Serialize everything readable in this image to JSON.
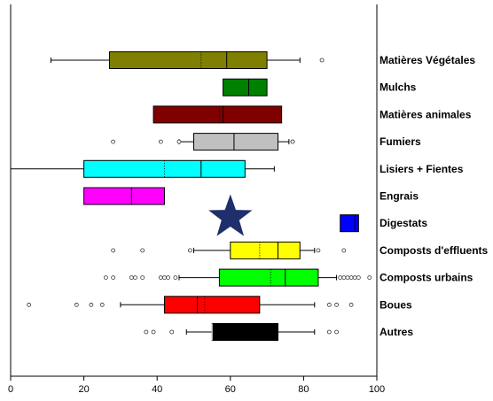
{
  "chart_data": {
    "type": "boxplot",
    "orientation": "horizontal",
    "xlim": [
      0,
      100
    ],
    "xticks": [
      0,
      20,
      40,
      60,
      80,
      100
    ],
    "grid": false,
    "legend": "none",
    "categories": [
      {
        "label": "Matières Végétales",
        "color": "#808000",
        "min": 11,
        "q1": 27,
        "median": 59,
        "mean": 52,
        "q3": 70,
        "max": 79,
        "outliers": [
          85
        ]
      },
      {
        "label": "Mulchs",
        "color": "#008000",
        "min": 58,
        "q1": 58,
        "median": 65,
        "mean": null,
        "q3": 70,
        "max": 70,
        "outliers": []
      },
      {
        "label": "Matières animales",
        "color": "#800000",
        "min": 39,
        "q1": 39,
        "median": 58,
        "mean": 57,
        "q3": 74,
        "max": 74,
        "outliers": []
      },
      {
        "label": "Fumiers",
        "color": "#c0c0c0",
        "min": 46,
        "q1": 50,
        "median": 61,
        "mean": null,
        "q3": 73,
        "max": 76,
        "outliers": [
          28,
          41,
          46,
          77,
          77
        ]
      },
      {
        "label": "Lisiers + Fientes",
        "color": "#00ffff",
        "min": 0,
        "q1": 20,
        "median": 52,
        "mean": 42,
        "q3": 64,
        "max": 72,
        "outliers": []
      },
      {
        "label": "Engrais",
        "color": "#ff00ff",
        "min": 20,
        "q1": 20,
        "median": 33,
        "mean": null,
        "q3": 42,
        "max": 42,
        "outliers": []
      },
      {
        "label": "Digestats",
        "color": "#0000ff",
        "min": 90,
        "q1": 90,
        "median": 94,
        "mean": null,
        "q3": 95,
        "max": 95,
        "outliers": []
      },
      {
        "label": "Composts d'effluents",
        "color": "#ffff00",
        "min": 50,
        "q1": 60,
        "median": 73,
        "mean": 68,
        "q3": 79,
        "max": 83,
        "outliers": [
          28,
          36,
          49,
          84,
          91
        ]
      },
      {
        "label": "Composts urbains",
        "color": "#00ff00",
        "min": 46,
        "q1": 57,
        "median": 75,
        "mean": 71,
        "q3": 84,
        "max": 89,
        "outliers": [
          26,
          28,
          33,
          34,
          36,
          41,
          42,
          43,
          45,
          90,
          91,
          92,
          93,
          94,
          95,
          98
        ]
      },
      {
        "label": "Boues",
        "color": "#ff0000",
        "min": 30,
        "q1": 42,
        "median": 51,
        "mean": 53,
        "q3": 68,
        "max": 83,
        "outliers": [
          5,
          18,
          22,
          25,
          87,
          89,
          93
        ]
      },
      {
        "label": "Autres",
        "color": "#000000",
        "min": 48,
        "q1": 55,
        "median": 55,
        "mean": null,
        "q3": 73,
        "max": 83,
        "outliers": [
          37,
          39,
          44,
          87,
          89
        ]
      }
    ],
    "marker": {
      "shape": "star",
      "color": "#1f2f6b",
      "x": 60,
      "category_position": 6.5
    }
  }
}
